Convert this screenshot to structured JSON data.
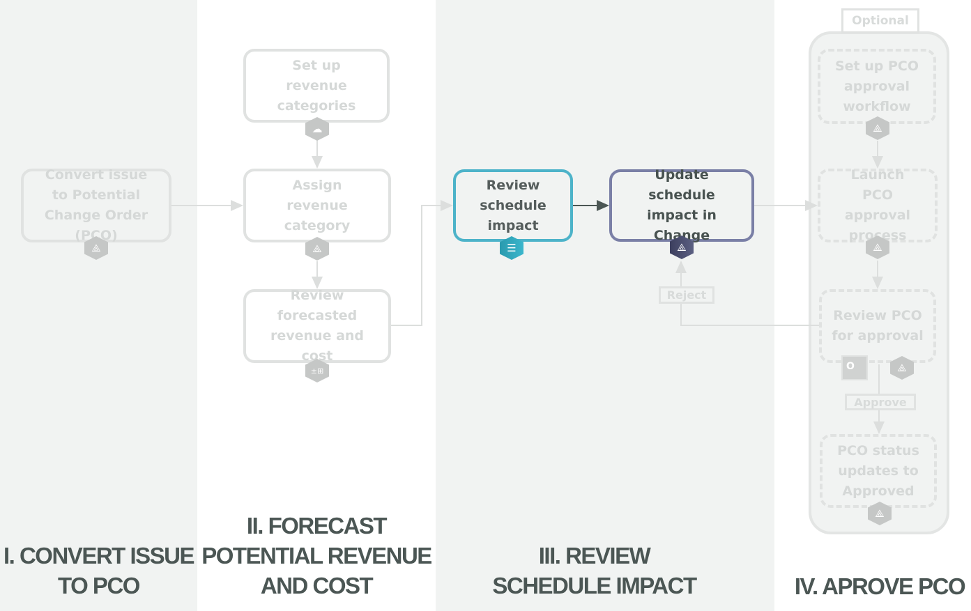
{
  "colors": {
    "lane_gray": "#f1f3f2",
    "lane_white": "#ffffff",
    "active_teal": "#4db3c9",
    "active_purple": "#7a7fa6",
    "faded": "#e0e2e1",
    "title": "#4b5654"
  },
  "lanes": [
    {
      "title_lines": [
        "I. CONVERT ISSUE",
        "TO PCO"
      ]
    },
    {
      "title_lines": [
        "II. FORECAST",
        "POTENTIAL REVENUE",
        "AND COST"
      ]
    },
    {
      "title_lines": [
        "III. REVIEW",
        "SCHEDULE IMPACT"
      ]
    },
    {
      "title_lines": [
        "IV. APROVE PCO"
      ]
    }
  ],
  "nodes": {
    "convert": {
      "label": "Convert issue to Potential Change Order (PCO)",
      "icon": "procore-icon"
    },
    "setup_revenue": {
      "label": "Set up revenue categories",
      "icon": "cloud-icon"
    },
    "assign_revenue": {
      "label": "Assign revenue category",
      "icon": "procore-icon"
    },
    "review_forecast": {
      "label": "Review forecasted revenue and cost",
      "icon": "calculator-icon"
    },
    "review_schedule": {
      "label": "Review schedule impact",
      "icon": "schedule-icon"
    },
    "update_schedule": {
      "label": "Update schedule impact in Change",
      "icon": "procore-icon"
    },
    "setup_pco": {
      "label": "Set up PCO approval workflow",
      "icon": "procore-icon"
    },
    "launch_pco": {
      "label": "Launch PCO approval process",
      "icon": "procore-icon"
    },
    "review_pco": {
      "label": "Review PCO for approval",
      "icons": [
        "outlook-icon",
        "procore-icon"
      ]
    },
    "pco_status": {
      "label": "PCO status updates to Approved",
      "icon": "procore-icon"
    }
  },
  "labels": {
    "optional": "Optional",
    "reject": "Reject",
    "approve": "Approve"
  }
}
